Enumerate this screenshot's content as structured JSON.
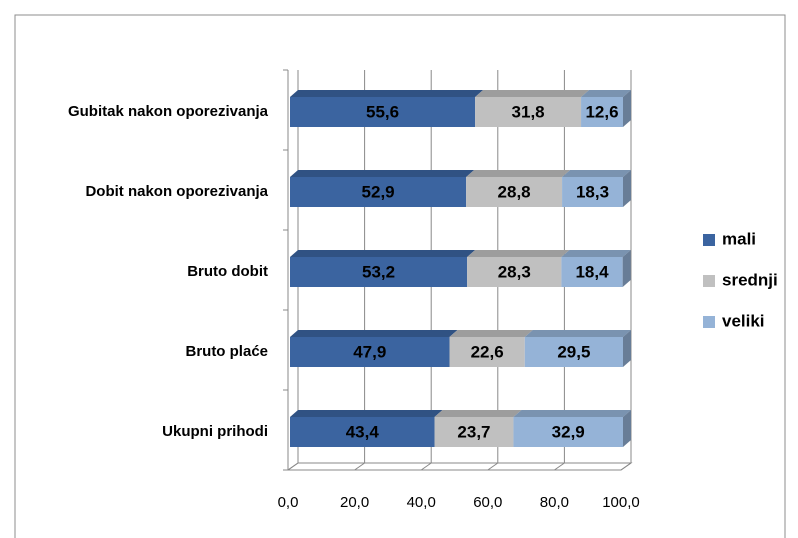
{
  "chart_data": {
    "type": "stacked_bar_horizontal_3d",
    "categories": [
      "Gubitak nakon oporezivanja",
      "Dobit nakon oporezivanja",
      "Bruto dobit",
      "Bruto plaće",
      "Ukupni prihodi"
    ],
    "series": [
      {
        "name": "mali",
        "color": "#3b64a0",
        "values": [
          55.6,
          52.9,
          53.2,
          47.9,
          43.4
        ],
        "value_labels": [
          "55,6",
          "52,9",
          "53,2",
          "47,9",
          "43,4"
        ]
      },
      {
        "name": "srednji",
        "color": "#c0c0c0",
        "values": [
          31.8,
          28.8,
          28.3,
          22.6,
          23.7
        ],
        "value_labels": [
          "31,8",
          "28,8",
          "28,3",
          "22,6",
          "23,7"
        ]
      },
      {
        "name": "veliki",
        "color": "#95b3d7",
        "values": [
          12.6,
          18.3,
          18.4,
          29.5,
          32.9
        ],
        "value_labels": [
          "12,6",
          "18,3",
          "18,4",
          "29,5",
          "32,9"
        ]
      }
    ],
    "xlim": [
      0,
      100
    ],
    "xticks": [
      {
        "value": 0,
        "label": "0,0"
      },
      {
        "value": 20,
        "label": "20,0"
      },
      {
        "value": 40,
        "label": "40,0"
      },
      {
        "value": 60,
        "label": "60,0"
      },
      {
        "value": 80,
        "label": "80,0"
      },
      {
        "value": 100,
        "label": "100,0"
      }
    ],
    "grid": true,
    "legend": "right"
  }
}
